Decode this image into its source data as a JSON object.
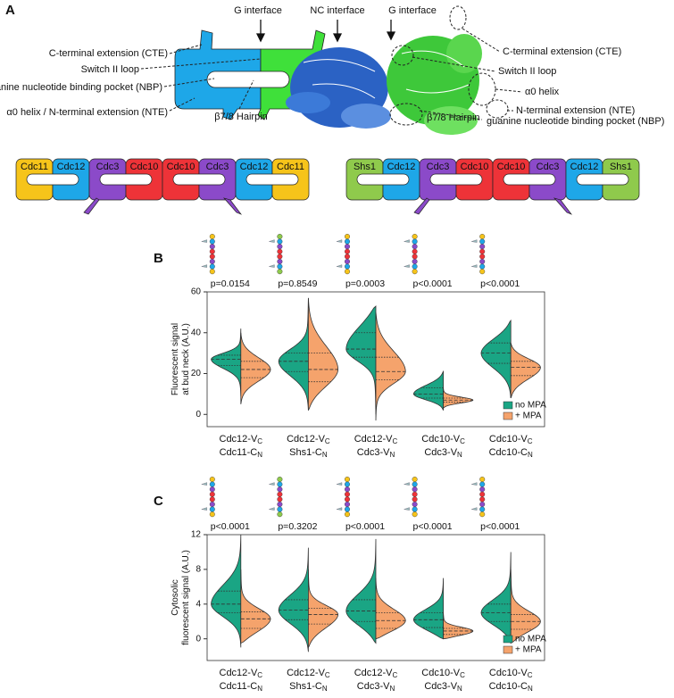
{
  "panel_a": {
    "label": "A",
    "top_labels": [
      "G interface",
      "NC interface",
      "G interface"
    ],
    "left_labels": [
      "C-terminal extension (CTE)",
      "Switch II loop",
      "guanine nucleotide binding pocket (NBP)",
      "α0 helix / N-terminal extension (NTE)",
      "β7/8 Hairpin"
    ],
    "right_labels": [
      "C-terminal extension (CTE)",
      "Switch II loop",
      "α0 helix",
      "N-terminal extension (NTE)",
      "β7/8 Hairpin",
      "guanine nucleotide binding pocket (NBP)"
    ],
    "filament_1": [
      "Cdc11",
      "Cdc12",
      "Cdc3",
      "Cdc10",
      "Cdc10",
      "Cdc3",
      "Cdc12",
      "Cdc11"
    ],
    "filament_2": [
      "Shs1",
      "Cdc12",
      "Cdc3",
      "Cdc10",
      "Cdc10",
      "Cdc3",
      "Cdc12",
      "Shs1"
    ]
  },
  "chart_data": [
    {
      "type": "violin",
      "panel_label": "B",
      "ylabel": [
        "Fluorescent signal",
        "at bud neck (A.U.)"
      ],
      "categories": [
        [
          "Cdc12-V",
          "C",
          "Cdc11-C",
          "N"
        ],
        [
          "Cdc12-V",
          "C",
          "Shs1-C",
          "N"
        ],
        [
          "Cdc12-V",
          "C",
          "Cdc3-V",
          "N"
        ],
        [
          "Cdc10-V",
          "C",
          "Cdc3-V",
          "N"
        ],
        [
          "Cdc10-V",
          "C",
          "Cdc10-C",
          "N"
        ]
      ],
      "annotations": [
        "p=0.0154",
        "p=0.8549",
        "p=0.0003",
        "p<0.0001",
        "p<0.0001"
      ],
      "ylim": [
        -6,
        60
      ],
      "yticks": [
        0,
        20,
        40,
        60
      ],
      "legend": "lower right",
      "series": [
        {
          "name": "no MPA",
          "color": "#1aa584",
          "min": [
            9,
            2,
            0,
            2,
            8
          ],
          "q1": [
            24,
            21,
            28,
            8,
            25
          ],
          "median": [
            27,
            26,
            32,
            10,
            30
          ],
          "q3": [
            29,
            30,
            40,
            13,
            35
          ],
          "max": [
            42,
            57,
            53,
            21,
            46
          ]
        },
        {
          "name": "+ MPA",
          "color": "#f5a36c",
          "min": [
            5,
            2,
            -3,
            3,
            8
          ],
          "q1": [
            18,
            16,
            17,
            6,
            19
          ],
          "median": [
            22,
            22,
            21,
            7,
            23
          ],
          "q3": [
            26,
            30,
            28,
            8,
            26
          ],
          "max": [
            40,
            57,
            50,
            13,
            35
          ]
        }
      ]
    },
    {
      "type": "violin",
      "panel_label": "C",
      "ylabel": [
        "Cytosolic",
        "fluorescent signal (A.U.)"
      ],
      "categories": [
        [
          "Cdc12-V",
          "C",
          "Cdc11-C",
          "N"
        ],
        [
          "Cdc12-V",
          "C",
          "Shs1-C",
          "N"
        ],
        [
          "Cdc12-V",
          "C",
          "Cdc3-V",
          "N"
        ],
        [
          "Cdc10-V",
          "C",
          "Cdc3-V",
          "N"
        ],
        [
          "Cdc10-V",
          "C",
          "Cdc10-C",
          "N"
        ]
      ],
      "annotations": [
        "p<0.0001",
        "p=0.3202",
        "p<0.0001",
        "p<0.0001",
        "p<0.0001"
      ],
      "ylim": [
        -2.5,
        12
      ],
      "yticks": [
        0,
        4,
        8,
        12
      ],
      "legend": "lower right",
      "series": [
        {
          "name": "no MPA",
          "color": "#1aa584",
          "min": [
            -1,
            -1.5,
            -0.5,
            0,
            -0.5
          ],
          "q1": [
            3,
            2.2,
            2,
            1.3,
            2
          ],
          "median": [
            4,
            3.3,
            3.2,
            2.2,
            3
          ],
          "q3": [
            5.5,
            4.5,
            4.5,
            3,
            4
          ],
          "max": [
            12,
            10.5,
            11.5,
            7,
            10
          ]
        },
        {
          "name": "+ MPA",
          "color": "#f5a36c",
          "min": [
            -0.5,
            -1,
            0,
            0,
            -0.5
          ],
          "q1": [
            1.2,
            1.7,
            1.2,
            0.5,
            1.1
          ],
          "median": [
            2.3,
            2.8,
            2.1,
            0.9,
            2
          ],
          "q3": [
            3.1,
            3.5,
            3,
            1.2,
            2.8
          ],
          "max": [
            8,
            8,
            7,
            3,
            8
          ]
        }
      ]
    }
  ]
}
